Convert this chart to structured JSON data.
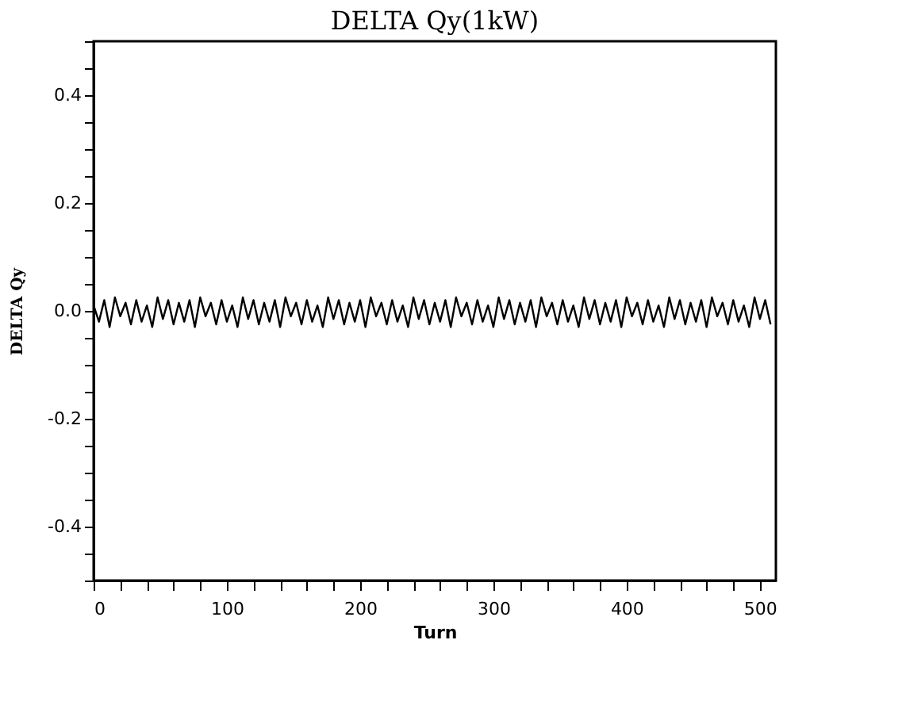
{
  "chart_data": {
    "type": "line",
    "title": "DELTA Qy(1kW)",
    "xlabel": "Turn",
    "ylabel": "DELTA Qy",
    "x": [
      0,
      4,
      8,
      12,
      16,
      20,
      24,
      28,
      32,
      36,
      40,
      44,
      48,
      52,
      56,
      60,
      64,
      68,
      72,
      76,
      80,
      84,
      88,
      92,
      96,
      100,
      104,
      108,
      112,
      116,
      120,
      124,
      128,
      132,
      136,
      140,
      144,
      148,
      152,
      156,
      160,
      164,
      168,
      172,
      176,
      180,
      184,
      188,
      192,
      196,
      200,
      204,
      208,
      212,
      216,
      220,
      224,
      228,
      232,
      236,
      240,
      244,
      248,
      252,
      256,
      260,
      264,
      268,
      272,
      276,
      280,
      284,
      288,
      292,
      296,
      300,
      304,
      308,
      312,
      316,
      320,
      324,
      328,
      332,
      336,
      340,
      344,
      348,
      352,
      356,
      360,
      364,
      368,
      372,
      376,
      380,
      384,
      388,
      392,
      396,
      400,
      404,
      408,
      412,
      416,
      420,
      424,
      428,
      432,
      436,
      440,
      444,
      448,
      452,
      456,
      460,
      464,
      468,
      472,
      476,
      480,
      484,
      488,
      492,
      496,
      500,
      504,
      508
    ],
    "series": [
      {
        "color": "#000000",
        "values": [
          0.01,
          -0.02,
          0.02,
          -0.03,
          0.025,
          -0.01,
          0.015,
          -0.025,
          0.02,
          -0.02,
          0.01,
          -0.03,
          0.025,
          -0.015,
          0.02,
          -0.025,
          0.015,
          -0.02,
          0.02,
          -0.03,
          0.025,
          -0.01,
          0.015,
          -0.025,
          0.02,
          -0.02,
          0.01,
          -0.03,
          0.025,
          -0.015,
          0.02,
          -0.025,
          0.015,
          -0.02,
          0.02,
          -0.03,
          0.025,
          -0.01,
          0.015,
          -0.025,
          0.02,
          -0.02,
          0.01,
          -0.03,
          0.025,
          -0.015,
          0.02,
          -0.025,
          0.015,
          -0.02,
          0.02,
          -0.03,
          0.025,
          -0.01,
          0.015,
          -0.025,
          0.02,
          -0.02,
          0.01,
          -0.03,
          0.025,
          -0.015,
          0.02,
          -0.025,
          0.015,
          -0.02,
          0.02,
          -0.03,
          0.025,
          -0.01,
          0.015,
          -0.025,
          0.02,
          -0.02,
          0.01,
          -0.03,
          0.025,
          -0.015,
          0.02,
          -0.025,
          0.015,
          -0.02,
          0.02,
          -0.03,
          0.025,
          -0.01,
          0.015,
          -0.025,
          0.02,
          -0.02,
          0.01,
          -0.03,
          0.025,
          -0.015,
          0.02,
          -0.025,
          0.015,
          -0.02,
          0.02,
          -0.03,
          0.025,
          -0.01,
          0.015,
          -0.025,
          0.02,
          -0.02,
          0.01,
          -0.03,
          0.025,
          -0.015,
          0.02,
          -0.025,
          0.015,
          -0.02,
          0.02,
          -0.03,
          0.025,
          -0.01,
          0.015,
          -0.025,
          0.02,
          -0.02,
          0.01,
          -0.03,
          0.025,
          -0.015,
          0.02,
          -0.025
        ]
      }
    ],
    "xlim": [
      0,
      512
    ],
    "ylim": [
      -0.5,
      0.5
    ],
    "xticks": [
      0,
      {
        "value": 20,
        "label": null
      },
      {
        "value": 40,
        "label": null
      },
      {
        "value": 60,
        "label": null
      },
      {
        "value": 80,
        "label": null
      },
      100,
      {
        "value": 120,
        "label": null
      },
      {
        "value": 140,
        "label": null
      },
      {
        "value": 160,
        "label": null
      },
      {
        "value": 180,
        "label": null
      },
      200,
      {
        "value": 220,
        "label": null
      },
      {
        "value": 240,
        "label": null
      },
      {
        "value": 260,
        "label": null
      },
      {
        "value": 280,
        "label": null
      },
      300,
      {
        "value": 320,
        "label": null
      },
      {
        "value": 340,
        "label": null
      },
      {
        "value": 360,
        "label": null
      },
      {
        "value": 380,
        "label": null
      },
      400,
      {
        "value": 420,
        "label": null
      },
      {
        "value": 440,
        "label": null
      },
      {
        "value": 460,
        "label": null
      },
      {
        "value": 480,
        "label": null
      },
      500
    ],
    "yticks": [
      {
        "value": -0.5,
        "label": null
      },
      {
        "value": -0.45,
        "label": null
      },
      -0.4,
      {
        "value": -0.35,
        "label": null
      },
      {
        "value": -0.3,
        "label": null
      },
      {
        "value": -0.25,
        "label": null
      },
      -0.2,
      {
        "value": -0.15,
        "label": null
      },
      {
        "value": -0.1,
        "label": null
      },
      {
        "value": -0.05,
        "label": null
      },
      {
        "value": 0,
        "label": "0.0"
      },
      {
        "value": 0.05,
        "label": null
      },
      {
        "value": 0.1,
        "label": null
      },
      {
        "value": 0.15,
        "label": null
      },
      0.2,
      {
        "value": 0.25,
        "label": null
      },
      {
        "value": 0.3,
        "label": null
      },
      {
        "value": 0.35,
        "label": null
      },
      0.4,
      {
        "value": 0.45,
        "label": null
      },
      {
        "value": 0.5,
        "label": null
      }
    ],
    "grid": false,
    "legend": false,
    "marker": "none",
    "line_style": "solid"
  }
}
